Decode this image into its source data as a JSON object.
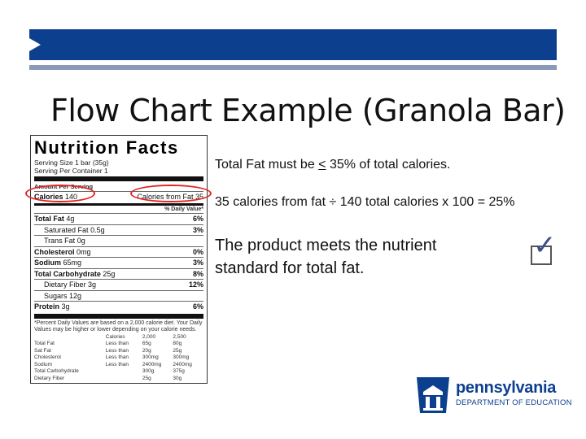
{
  "slide": {
    "title": "Flow Chart Example (Granola Bar)",
    "line1_before": "Total Fat must be ",
    "line1_symbol": "<",
    "line1_after": " 35% of total calories.",
    "line2": "35 calories from fat ÷ 140 total calories x 100  =  25%",
    "line3": "The product meets the nutrient standard for total fat.",
    "check_glyph": "✓"
  },
  "label": {
    "heading": "Nutrition Facts",
    "serving_size": "Serving Size 1 bar (35g)",
    "servings_per_container": "Serving Per Container 1",
    "amount_per_serving": "Amount Per Serving",
    "calories_label": "Calories",
    "calories_value": "140",
    "calories_from_fat": "Calories from Fat 35",
    "daily_value_header": "% Daily Value*",
    "rows": [
      {
        "label": "Total Fat",
        "amount": "4g",
        "dv": "6%",
        "bold": true,
        "indent": false
      },
      {
        "label": "Saturated Fat",
        "amount": "0.5g",
        "dv": "3%",
        "bold": false,
        "indent": true
      },
      {
        "label": "Trans Fat",
        "amount": "0g",
        "dv": "",
        "bold": false,
        "indent": true
      },
      {
        "label": "Cholesterol",
        "amount": "0mg",
        "dv": "0%",
        "bold": true,
        "indent": false
      },
      {
        "label": "Sodium",
        "amount": "65mg",
        "dv": "3%",
        "bold": true,
        "indent": false
      },
      {
        "label": "Total Carbohydrate",
        "amount": "25g",
        "dv": "8%",
        "bold": true,
        "indent": false
      },
      {
        "label": "Dietary Fiber",
        "amount": "3g",
        "dv": "12%",
        "bold": false,
        "indent": true
      },
      {
        "label": "Sugars",
        "amount": "12g",
        "dv": "",
        "bold": false,
        "indent": true
      },
      {
        "label": "Protein",
        "amount": "3g",
        "dv": "6%",
        "bold": true,
        "indent": false
      }
    ],
    "footnote": "*Percent Daily Values are based on a 2,000 calorie diet. Your Daily Values may be higher or lower depending on your calorie needs.",
    "footnote_table": {
      "header": [
        "",
        "Calories",
        "2,000",
        "2,500"
      ],
      "rows": [
        [
          "Total Fat",
          "Less than",
          "65g",
          "80g"
        ],
        [
          "Sat Fat",
          "Less than",
          "20g",
          "25g"
        ],
        [
          "Cholesterol",
          "Less than",
          "300mg",
          "300mg"
        ],
        [
          "Sodium",
          "Less than",
          "2400mg",
          "2400mg"
        ],
        [
          "Total Carbohydrate",
          "",
          "300g",
          "375g"
        ],
        [
          "Dietary Fiber",
          "",
          "25g",
          "30g"
        ]
      ]
    }
  },
  "logo": {
    "name": "pennsylvania",
    "department": "DEPARTMENT OF EDUCATION"
  },
  "colors": {
    "header_blue": "#0d3f8f",
    "header_line": "#8a9ab8",
    "highlight_red": "#e52222",
    "check_blue": "#3a4f8a"
  }
}
